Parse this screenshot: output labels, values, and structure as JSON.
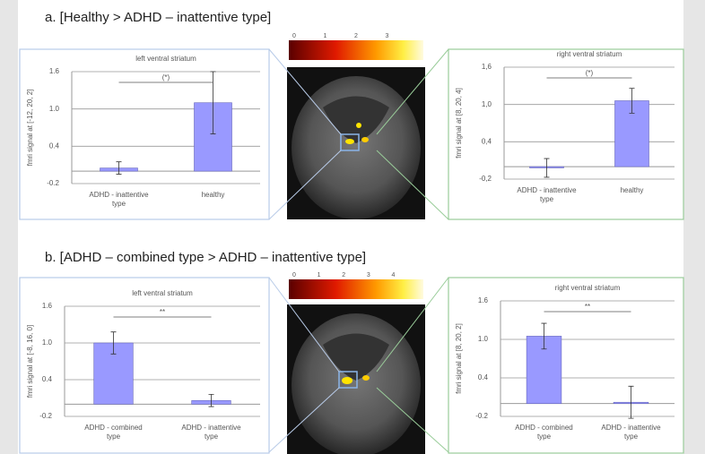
{
  "panels": [
    {
      "title": "a. [Healthy > ADHD – inattentive type]"
    },
    {
      "title": "b. [ADHD – combined type > ADHD – inattentive type]"
    }
  ],
  "colorbars": [
    {
      "ticks": [
        0,
        1,
        2,
        3
      ]
    },
    {
      "ticks": [
        0,
        1,
        2,
        3,
        4
      ]
    }
  ],
  "chart_data": [
    {
      "type": "bar",
      "title": "left ventral striatum",
      "y_label": "fmri signal at [-12, 20, 2]",
      "categories": [
        "ADHD - inattentive type",
        "healthy"
      ],
      "values": [
        0.05,
        1.1
      ],
      "errors": [
        0.1,
        0.5
      ],
      "color": "#9999ff",
      "ylim": [
        -0.2,
        1.6
      ],
      "yticks": [
        -0.2,
        0.4,
        {
          "value": 1,
          "label": "1.0"
        },
        1.6
      ],
      "grid": true,
      "annotation": "(*)"
    },
    {
      "type": "bar",
      "title": "right ventral striatum",
      "y_label": "fmri signal at [8, 20, 4]",
      "categories": [
        "ADHD - inattentive type",
        "healthy"
      ],
      "values": [
        -0.02,
        1.06
      ],
      "errors": [
        0.15,
        0.2
      ],
      "color": "#9999ff",
      "ylim": [
        -0.2,
        1.6
      ],
      "yticks": [
        {
          "value": -0.2,
          "label": "-0,2"
        },
        {
          "value": 0.4,
          "label": "0,4"
        },
        {
          "value": 1,
          "label": "1,0"
        },
        {
          "value": 1.6,
          "label": "1,6"
        }
      ],
      "grid": true,
      "annotation": "(*)"
    },
    {
      "type": "bar",
      "title": "left ventral striatum",
      "y_label": "fmri signal at [-8, 16, 0]",
      "categories": [
        "ADHD - combined type",
        "ADHD - inattentive type"
      ],
      "values": [
        1.0,
        0.06
      ],
      "errors": [
        0.18,
        0.1
      ],
      "color": "#9999ff",
      "ylim": [
        -0.2,
        1.6
      ],
      "yticks": [
        -0.2,
        0.4,
        {
          "value": 1,
          "label": "1.0"
        },
        1.6
      ],
      "grid": true,
      "annotation": "**"
    },
    {
      "type": "bar",
      "title": "right ventral striatum",
      "y_label": "fmri signal at [8, 20, 2]",
      "categories": [
        "ADHD - combined type",
        "ADHD - inattentive type"
      ],
      "values": [
        1.05,
        0.02
      ],
      "errors": [
        0.2,
        0.25
      ],
      "color": "#9999ff",
      "ylim": [
        -0.2,
        1.6
      ],
      "yticks": [
        -0.2,
        0.4,
        {
          "value": 1,
          "label": "1.0"
        },
        1.6
      ],
      "grid": true,
      "annotation": "**"
    }
  ]
}
